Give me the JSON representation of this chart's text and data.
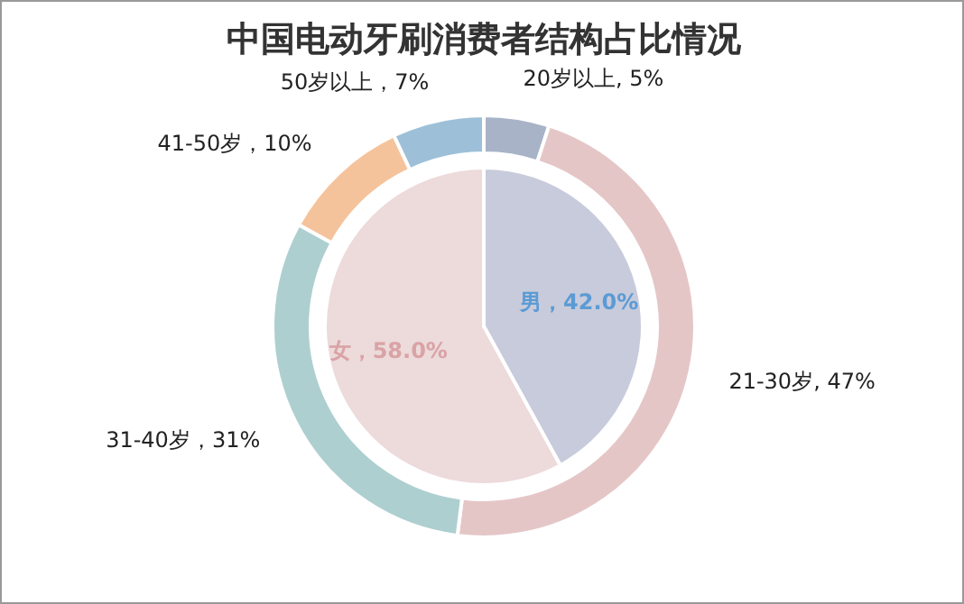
{
  "chart_data": [
    {
      "type": "pie",
      "title": "中国电动牙刷消费者结构占比情况",
      "categories": [
        "男",
        "女"
      ],
      "values": [
        42.0,
        58.0
      ],
      "colors": [
        "#c8cbdb",
        "#eddadb"
      ],
      "value_labels": [
        "，42.0%",
        "，58.0%"
      ]
    },
    {
      "type": "donut",
      "categories": [
        "20岁以上",
        "21-30岁",
        "31-40岁",
        "41-50岁",
        "50岁以上"
      ],
      "values": [
        5,
        47,
        31,
        10,
        7
      ],
      "colors": [
        "#a8b3c8",
        "#e5c6c7",
        "#aecfd0",
        "#f5c39b",
        "#9dc0d8"
      ],
      "value_labels": [
        ", 5%",
        ", 47%",
        "，31%",
        "，10%",
        "，7%"
      ]
    }
  ]
}
